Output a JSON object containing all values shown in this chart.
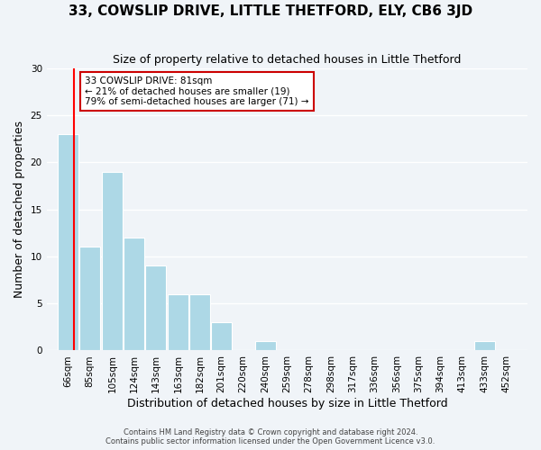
{
  "title": "33, COWSLIP DRIVE, LITTLE THETFORD, ELY, CB6 3JD",
  "subtitle": "Size of property relative to detached houses in Little Thetford",
  "xlabel": "Distribution of detached houses by size in Little Thetford",
  "ylabel": "Number of detached properties",
  "footnote1": "Contains HM Land Registry data © Crown copyright and database right 2024.",
  "footnote2": "Contains public sector information licensed under the Open Government Licence v3.0.",
  "bin_edges": [
    66,
    85,
    105,
    124,
    143,
    163,
    182,
    201,
    220,
    240,
    259,
    278,
    298,
    317,
    336,
    356,
    375,
    394,
    413,
    433,
    452
  ],
  "bin_labels": [
    "66sqm",
    "85sqm",
    "105sqm",
    "124sqm",
    "143sqm",
    "163sqm",
    "182sqm",
    "201sqm",
    "220sqm",
    "240sqm",
    "259sqm",
    "278sqm",
    "298sqm",
    "317sqm",
    "336sqm",
    "356sqm",
    "375sqm",
    "394sqm",
    "413sqm",
    "433sqm",
    "452sqm"
  ],
  "bar_heights": [
    23,
    11,
    19,
    12,
    9,
    6,
    6,
    3,
    0,
    1,
    0,
    0,
    0,
    0,
    0,
    0,
    0,
    0,
    0,
    1
  ],
  "bar_color": "#add8e6",
  "bar_edge_color": "#ffffff",
  "ylim": [
    0,
    30
  ],
  "yticks": [
    0,
    5,
    10,
    15,
    20,
    25,
    30
  ],
  "property_size": 81,
  "red_line_color": "#ff0000",
  "annotation_title": "33 COWSLIP DRIVE: 81sqm",
  "annotation_line1": "← 21% of detached houses are smaller (19)",
  "annotation_line2": "79% of semi-detached houses are larger (71) →",
  "annotation_box_color": "#ffffff",
  "annotation_box_edge": "#cc0000",
  "bg_color": "#f0f4f8",
  "grid_color": "#ffffff",
  "title_fontsize": 11,
  "subtitle_fontsize": 9,
  "axis_label_fontsize": 9,
  "tick_fontsize": 7.5
}
